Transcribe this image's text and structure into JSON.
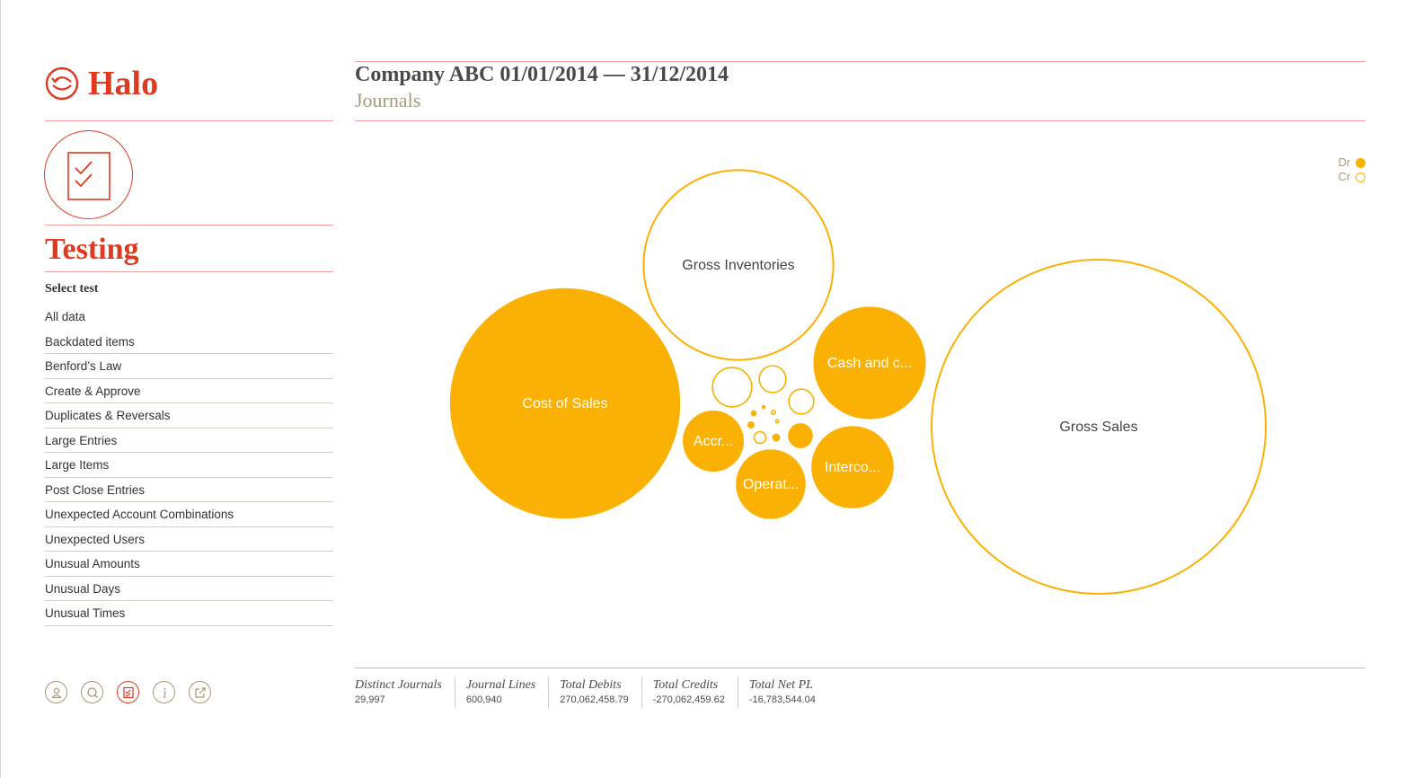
{
  "brand": {
    "name": "Halo",
    "accent_color": "#e0391f",
    "logo_icon": "halo-logo-icon"
  },
  "sidebar": {
    "section_icon": "checklist-icon",
    "section_title": "Testing",
    "select_label": "Select test",
    "tests": [
      "All data",
      "Backdated items",
      "Benford’s Law",
      "Create & Approve",
      "Duplicates & Reversals",
      "Large Entries",
      "Large Items",
      "Post Close Entries",
      "Unexpected Account Combinations",
      "Unexpected Users",
      "Unusual Amounts",
      "Unusual Days",
      "Unusual Times"
    ],
    "footer_icons": [
      "user-icon",
      "search-icon",
      "testing-icon",
      "info-icon",
      "external-link-icon"
    ],
    "active_footer_icon": "testing-icon"
  },
  "header": {
    "title": "Company ABC 01/01/2014 — 31/12/2014",
    "subtitle": "Journals"
  },
  "legend": {
    "items": [
      {
        "label": "Dr",
        "style": "filled"
      },
      {
        "label": "Cr",
        "style": "outline"
      }
    ],
    "color": "#fbb103"
  },
  "chart_data": {
    "type": "bubble",
    "color": "#fbb103",
    "bubbles": [
      {
        "label": "Gross Sales",
        "side": "Cr",
        "size": 1000
      },
      {
        "label": "Cost of Sales",
        "side": "Dr",
        "size": 470
      },
      {
        "label": "Gross Inventories",
        "side": "Cr",
        "size": 325
      },
      {
        "label": "Cash and c...",
        "side": "Dr",
        "size": 112
      },
      {
        "label": "Interco...",
        "side": "Dr",
        "size": 60
      },
      {
        "label": "Operat...",
        "side": "Dr",
        "size": 43
      },
      {
        "label": "Accr...",
        "side": "Dr",
        "size": 33
      },
      {
        "label": "",
        "side": "Cr",
        "size": 15
      },
      {
        "label": "",
        "side": "Cr",
        "size": 7.2
      },
      {
        "label": "",
        "side": "Dr",
        "size": 5.5
      },
      {
        "label": "",
        "side": "Cr",
        "size": 6.3
      },
      {
        "label": "",
        "side": "Cr",
        "size": 1.6
      },
      {
        "label": "",
        "side": "Dr",
        "size": 0.55
      },
      {
        "label": "",
        "side": "Dr",
        "size": 0.45
      },
      {
        "label": "",
        "side": "Dr",
        "size": 0.32
      },
      {
        "label": "",
        "side": "Cr",
        "size": 0.3
      },
      {
        "label": "",
        "side": "Dr",
        "size": 0.15
      },
      {
        "label": "",
        "side": "Cr",
        "size": 0.2
      }
    ]
  },
  "stats": [
    {
      "label": "Distinct Journals",
      "value": "29,997"
    },
    {
      "label": "Journal Lines",
      "value": "600,940"
    },
    {
      "label": "Total Debits",
      "value": "270,062,458.79"
    },
    {
      "label": "Total Credits",
      "value": "-270,062,459.62"
    },
    {
      "label": "Total Net PL",
      "value": "-16,783,544.04"
    }
  ]
}
